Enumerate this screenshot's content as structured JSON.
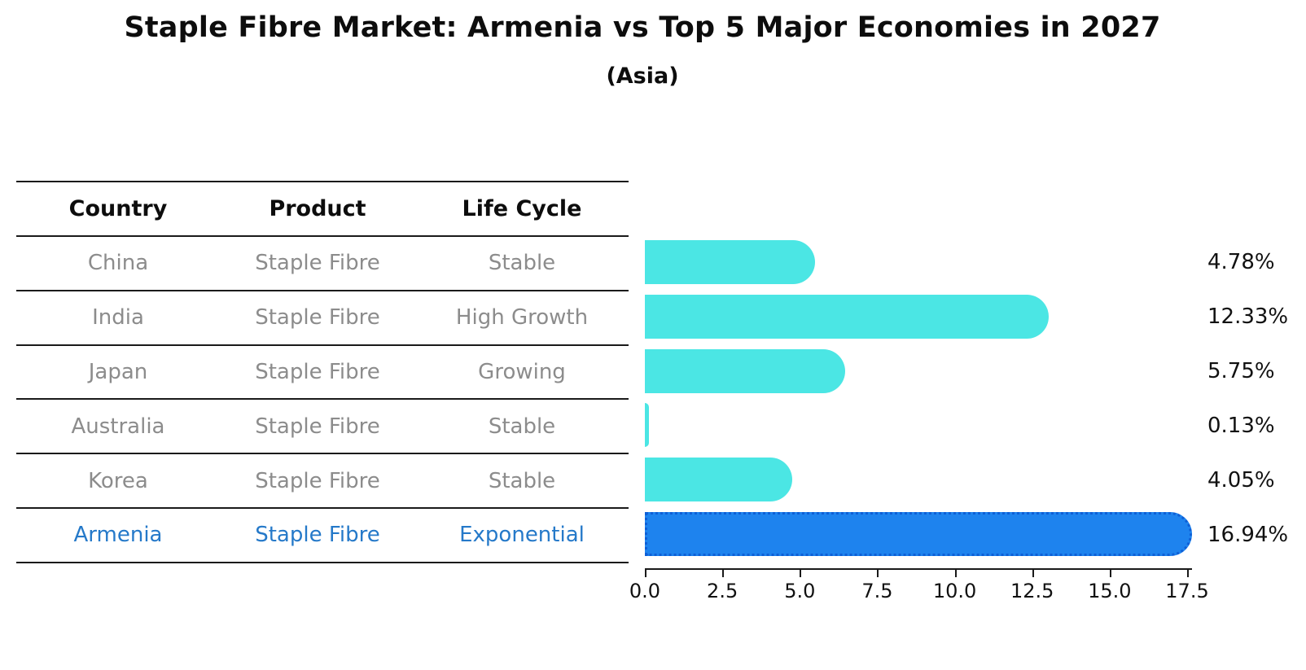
{
  "table": {
    "headers": [
      "Country",
      "Product",
      "Life Cycle"
    ],
    "rows": [
      {
        "country": "China",
        "product": "Staple Fibre",
        "life_cycle": "Stable",
        "highlighted": false
      },
      {
        "country": "India",
        "product": "Staple Fibre",
        "life_cycle": "High Growth",
        "highlighted": false
      },
      {
        "country": "Japan",
        "product": "Staple Fibre",
        "life_cycle": "Growing",
        "highlighted": false
      },
      {
        "country": "Australia",
        "product": "Staple Fibre",
        "life_cycle": "Stable",
        "highlighted": false
      },
      {
        "country": "Korea",
        "product": "Staple Fibre",
        "life_cycle": "Stable",
        "highlighted": false
      },
      {
        "country": "Armenia",
        "product": "Staple Fibre",
        "life_cycle": "Exponential",
        "highlighted": true
      }
    ]
  },
  "chart_data": {
    "type": "bar",
    "orientation": "horizontal",
    "title": "Staple Fibre Market: Armenia vs Top 5 Major Economies in 2027",
    "subtitle": "(Asia)",
    "categories": [
      "China",
      "India",
      "Japan",
      "Australia",
      "Korea",
      "Armenia"
    ],
    "values": [
      4.78,
      12.33,
      5.75,
      0.13,
      4.05,
      16.94
    ],
    "value_labels": [
      "4.78%",
      "12.33%",
      "5.75%",
      "0.13%",
      "4.05%",
      "16.94%"
    ],
    "highlight_category": "Armenia",
    "xlim": [
      0,
      17.5
    ],
    "x_ticks": [
      0.0,
      2.5,
      5.0,
      7.5,
      10.0,
      12.5,
      15.0,
      17.5
    ],
    "x_tick_labels": [
      "0.0",
      "2.5",
      "5.0",
      "7.5",
      "10.0",
      "12.5",
      "15.0",
      "17.5"
    ],
    "grid": false,
    "legend": "none",
    "colors": {
      "bar": "#4be6e4",
      "highlight_bar": "#1e83ee",
      "highlight_bar_dots": "#0e5fd6",
      "highlight_text": "#2579c9",
      "body_text": "#8c8c8c",
      "heading_text": "#0d0d0d",
      "axis": "#1a1a1a"
    }
  }
}
